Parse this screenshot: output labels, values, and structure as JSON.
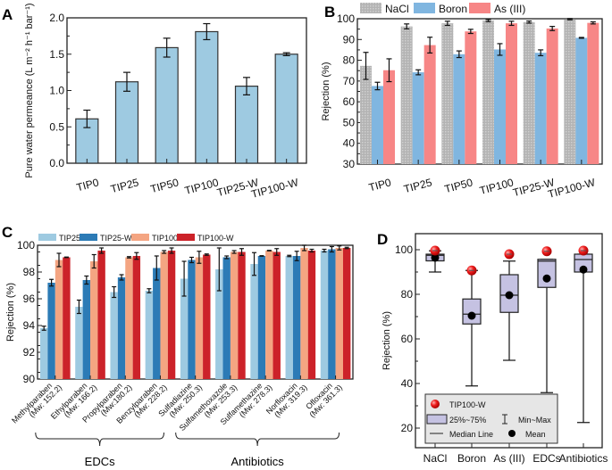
{
  "chart_data": [
    {
      "panel": "A",
      "type": "bar",
      "ylabel": "Pure water permeance (L m⁻² h⁻¹ bar⁻¹)",
      "ylim": [
        0,
        2.0
      ],
      "yticks": [
        "0.0",
        "0.5",
        "1.0",
        "1.5",
        "2.0"
      ],
      "categories": [
        "TIP0",
        "TIP25",
        "TIP50",
        "TIP100",
        "TIP25-W",
        "TIP100-W"
      ],
      "values": [
        0.61,
        1.12,
        1.59,
        1.81,
        1.06,
        1.5
      ],
      "errors": [
        0.12,
        0.13,
        0.13,
        0.11,
        0.12,
        0.02
      ],
      "color": "#9ecae1"
    },
    {
      "panel": "B",
      "type": "bar",
      "ylabel": "Rejection (%)",
      "ylim": [
        30,
        100
      ],
      "yticks": [
        "30",
        "40",
        "50",
        "60",
        "70",
        "80",
        "90",
        "100"
      ],
      "categories": [
        "TIP0",
        "TIP25",
        "TIP50",
        "TIP100",
        "TIP25-W",
        "TIP100-W"
      ],
      "legend_position": "top",
      "series": [
        {
          "name": "NaCl",
          "color": "#b3b3b3",
          "values": [
            77.3,
            96.3,
            97.8,
            99.1,
            98.4,
            99.8
          ],
          "errors": [
            6.5,
            1.2,
            1.0,
            0.5,
            0.5,
            0.3
          ]
        },
        {
          "name": "Boron",
          "color": "#80b6e0",
          "values": [
            67.6,
            74.2,
            82.9,
            85.2,
            83.6,
            90.8
          ],
          "errors": [
            1.8,
            1.2,
            1.6,
            2.8,
            1.4,
            0.2
          ]
        },
        {
          "name": "As (III)",
          "color": "#f78686",
          "values": [
            75.2,
            87.3,
            93.9,
            97.8,
            95.3,
            98.0
          ],
          "errors": [
            5.5,
            3.8,
            1.0,
            1.0,
            1.0,
            0.5
          ]
        }
      ]
    },
    {
      "panel": "C",
      "type": "bar",
      "ylabel": "Rejection (%)",
      "ylim": [
        90,
        100
      ],
      "yticks": [
        "90",
        "92",
        "94",
        "96",
        "98",
        "100"
      ],
      "categories": [
        {
          "name": "Methylparaben",
          "mw": "(Mw: 152.2)"
        },
        {
          "name": "Ethylparaben",
          "mw": "(Mw: 166.2)"
        },
        {
          "name": "Propylparaben",
          "mw": "(Mw:180.2)"
        },
        {
          "name": "Benzylparaben",
          "mw": "(Mw: 228.2)"
        },
        {
          "name": "Sulfadiazine",
          "mw": "(Mw: 250.3)"
        },
        {
          "name": "Sulfamethoxazole",
          "mw": "(Mw: 253.3)"
        },
        {
          "name": "Sulfamethazine",
          "mw": "(Mw: 278.3)"
        },
        {
          "name": "Norfloxacin",
          "mw": "(Mw: 319.3)"
        },
        {
          "name": "Ofloxacin",
          "mw": "(Mw: 361.3)"
        }
      ],
      "groups": [
        {
          "label": "EDCs",
          "from": 0,
          "to": 3
        },
        {
          "label": "Antibiotics",
          "from": 4,
          "to": 8
        }
      ],
      "legend_position": "top",
      "series": [
        {
          "name": "TIP25",
          "color": "#9ecae1",
          "values": [
            93.8,
            95.4,
            96.5,
            96.6,
            97.5,
            98.2,
            98.6,
            99.2,
            99.6
          ],
          "errors": [
            0.15,
            0.5,
            0.4,
            0.15,
            1.3,
            1.6,
            0.85,
            0.05,
            0.1
          ]
        },
        {
          "name": "TIP25-W",
          "color": "#2c7bb6",
          "values": [
            97.2,
            97.4,
            97.6,
            98.3,
            98.9,
            99.1,
            99.2,
            99.2,
            99.7
          ],
          "errors": [
            0.25,
            0.3,
            0.2,
            0.9,
            0.2,
            0.1,
            0.02,
            0.35,
            0.2
          ]
        },
        {
          "name": "TIP100",
          "color": "#f4a582",
          "values": [
            98.9,
            98.8,
            99.1,
            99.5,
            99.1,
            99.5,
            99.6,
            99.8,
            99.8
          ],
          "errors": [
            0.5,
            0.5,
            0.05,
            0.1,
            0.45,
            0.1,
            0.02,
            0.2,
            0.15
          ]
        },
        {
          "name": "TIP100-W",
          "color": "#cc2229",
          "values": [
            99.1,
            99.6,
            99.2,
            99.6,
            99.3,
            99.5,
            99.5,
            99.6,
            99.8
          ],
          "errors": [
            0.02,
            0.2,
            0.25,
            0.2,
            0.05,
            0.25,
            0.25,
            0.1,
            0.05
          ]
        }
      ]
    },
    {
      "panel": "D",
      "type": "box",
      "ylabel": "Rejection (%)",
      "ylim": [
        11,
        107
      ],
      "yticks": [
        "20",
        "40",
        "60",
        "80",
        "100"
      ],
      "categories": [
        "NaCl",
        "Boron",
        "As (III)",
        "EDCs",
        "Antibiotics"
      ],
      "box_color": "#c5c2e2",
      "stats": [
        {
          "min": 90.0,
          "q1": 95.0,
          "median": 97.5,
          "q3": 98.0,
          "max": 99.5,
          "mean": 96.4,
          "tip100w": 99.6
        },
        {
          "min": 38.9,
          "q1": 66.7,
          "median": 71.1,
          "q3": 77.9,
          "max": 90.7,
          "mean": 70.4,
          "tip100w": 90.7
        },
        {
          "min": 50.4,
          "q1": 71.9,
          "median": 79.6,
          "q3": 88.8,
          "max": 94.9,
          "mean": 79.6,
          "tip100w": 98.0
        },
        {
          "min": 35.9,
          "q1": 83.1,
          "median": 94.9,
          "q3": 95.7,
          "max": 95.7,
          "mean": 87.1,
          "tip100w": 99.3
        },
        {
          "min": 22.5,
          "q1": 90.0,
          "median": 95.6,
          "q3": 98.0,
          "max": 98.0,
          "mean": 91.1,
          "tip100w": 99.6
        }
      ],
      "legend": {
        "point": "TIP100-W",
        "box": "25%~75%",
        "whisker": "Min~Max",
        "median": "Median Line",
        "mean": "Mean"
      },
      "legend_position": "bottom-left"
    }
  ]
}
